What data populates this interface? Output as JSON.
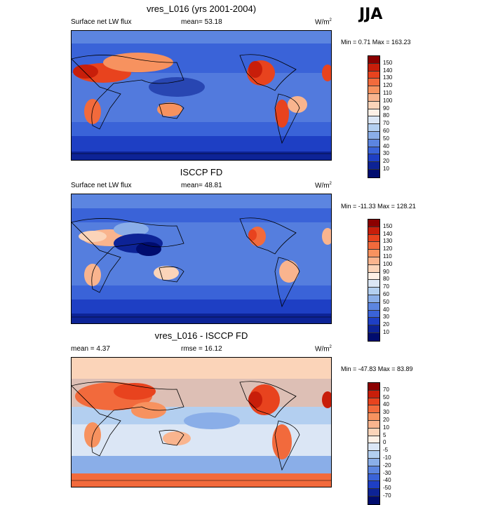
{
  "season": "JJA",
  "panels": [
    {
      "title": "vres_L016 (yrs 2001-2004)",
      "left": "Surface net LW flux",
      "center": "mean=  53.18",
      "unit_base": "W/m",
      "unit_exp": "2",
      "minmax": "Min =   0.71 Max = 163.23",
      "colorbar": {
        "labels": [
          "150",
          "140",
          "130",
          "120",
          "110",
          "100",
          "90",
          "80",
          "70",
          "60",
          "50",
          "40",
          "30",
          "20",
          "10"
        ],
        "colors": [
          "#8b0000",
          "#c81e0a",
          "#e8431e",
          "#f26a3c",
          "#f7925f",
          "#f9b48e",
          "#fbd4b9",
          "#fdf0e6",
          "#dbe6f5",
          "#b3cff0",
          "#8aaee8",
          "#5c85e0",
          "#3a63d8",
          "#1e3fc4",
          "#0d2396",
          "#000c6e"
        ]
      }
    },
    {
      "title": "ISCCP FD",
      "left": "Surface net LW flux",
      "center": "mean=  48.81",
      "unit_base": "W/m",
      "unit_exp": "2",
      "minmax": "Min = -11.33 Max = 128.21",
      "colorbar": {
        "labels": [
          "150",
          "140",
          "130",
          "120",
          "110",
          "100",
          "90",
          "80",
          "70",
          "60",
          "50",
          "40",
          "30",
          "20",
          "10"
        ],
        "colors": [
          "#8b0000",
          "#c81e0a",
          "#e8431e",
          "#f26a3c",
          "#f7925f",
          "#f9b48e",
          "#fbd4b9",
          "#fdf0e6",
          "#dbe6f5",
          "#b3cff0",
          "#8aaee8",
          "#5c85e0",
          "#3a63d8",
          "#1e3fc4",
          "#0d2396",
          "#000c6e"
        ]
      }
    },
    {
      "title": "vres_L016 - ISCCP FD",
      "left": "mean =   4.37",
      "center": "rmse =  16.12",
      "unit_base": "W/m",
      "unit_exp": "2",
      "minmax": "Min = -47.83 Max =  83.89",
      "colorbar": {
        "labels": [
          "70",
          "50",
          "40",
          "30",
          "20",
          "10",
          "5",
          "0",
          "-5",
          "-10",
          "-20",
          "-30",
          "-40",
          "-50",
          "-70"
        ],
        "colors": [
          "#8b0000",
          "#c81e0a",
          "#e8431e",
          "#f26a3c",
          "#f7925f",
          "#f9b48e",
          "#fbd4b9",
          "#fdf0e6",
          "#dbe6f5",
          "#b3cff0",
          "#8aaee8",
          "#5c85e0",
          "#3a63d8",
          "#1e3fc4",
          "#0d2396",
          "#000c6e"
        ]
      }
    }
  ]
}
